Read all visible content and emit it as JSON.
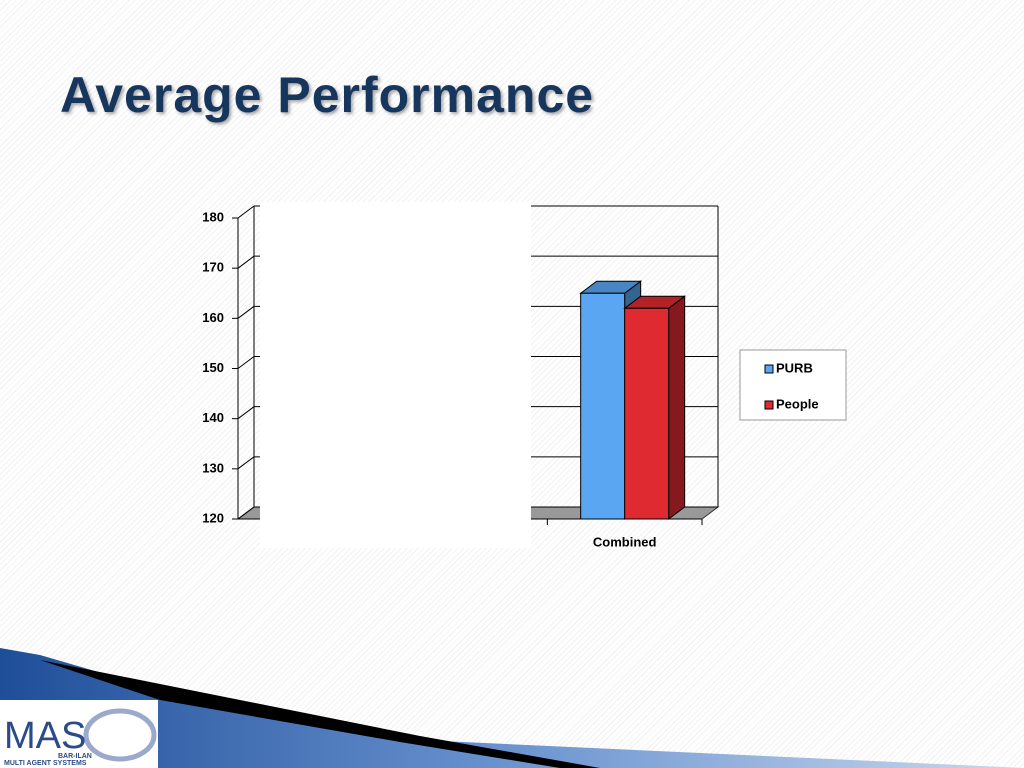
{
  "title": "Average Performance",
  "logo": {
    "name": "MAS",
    "line1": "BAR-ILAN",
    "line2": "MULTI AGENT SYSTEMS"
  },
  "chart_data": {
    "type": "bar",
    "categories": [
      null,
      null,
      "Combined"
    ],
    "series": [
      {
        "name": "PURB",
        "color": "#5aa6f2",
        "values": [
          null,
          null,
          165
        ]
      },
      {
        "name": "People",
        "color": "#de2a30",
        "values": [
          null,
          null,
          162
        ]
      }
    ],
    "ylim": [
      120,
      180
    ],
    "yticks": [
      120,
      130,
      140,
      150,
      160,
      170,
      180
    ],
    "grid": true,
    "legend": "right"
  }
}
